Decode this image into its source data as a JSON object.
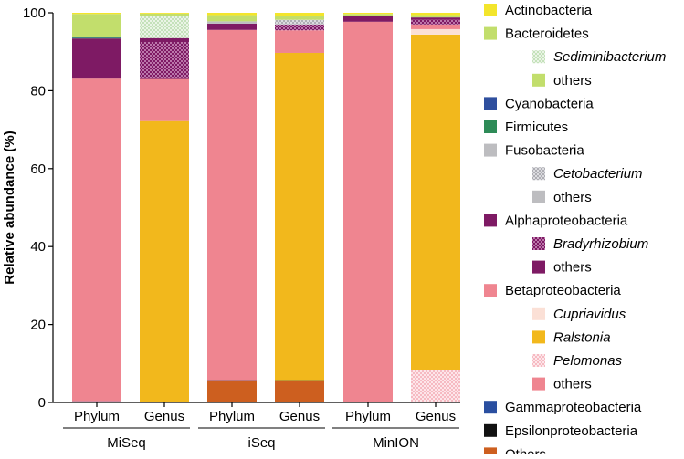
{
  "chart_data": {
    "type": "bar",
    "stacked": true,
    "ylabel": "Relative abundance (%)",
    "xlabel": "",
    "ylim": [
      0,
      100
    ],
    "yticks": [
      0,
      20,
      40,
      60,
      80,
      100
    ],
    "grid": false,
    "legend_position": "right",
    "categories": [
      "Phylum",
      "Genus",
      "Phylum",
      "Genus",
      "Phylum",
      "Genus"
    ],
    "groups": [
      {
        "label": "MiSeq",
        "categories": [
          0,
          1
        ]
      },
      {
        "label": "iSeq",
        "categories": [
          2,
          3
        ]
      },
      {
        "label": "MinION",
        "categories": [
          4,
          5
        ]
      }
    ],
    "legend": [
      {
        "id": "actino",
        "label": "Actinobacteria",
        "italic": false,
        "indent": false,
        "color": "#f3e52c",
        "pattern": "solid"
      },
      {
        "id": "bacteroidetes",
        "label": "Bacteroidetes",
        "italic": false,
        "indent": false,
        "color": "#c2de6c",
        "pattern": "solid"
      },
      {
        "id": "sediminibacterium",
        "label": "Sediminibacterium",
        "italic": true,
        "indent": true,
        "color": "#d8ecd4",
        "pattern": "dots"
      },
      {
        "id": "bact_others",
        "label": "others",
        "italic": false,
        "indent": true,
        "color": "#c2de6c",
        "pattern": "solid"
      },
      {
        "id": "cyano",
        "label": "Cyanobacteria",
        "italic": false,
        "indent": false,
        "color": "#2f4f9e",
        "pattern": "solid"
      },
      {
        "id": "firmicutes",
        "label": "Firmicutes",
        "italic": false,
        "indent": false,
        "color": "#2e8b57",
        "pattern": "solid"
      },
      {
        "id": "fuso",
        "label": "Fusobacteria",
        "italic": false,
        "indent": false,
        "color": "#bdbdc0",
        "pattern": "solid"
      },
      {
        "id": "cetobacterium",
        "label": "Cetobacterium",
        "italic": true,
        "indent": true,
        "color": "#bdbdc0",
        "pattern": "dots"
      },
      {
        "id": "fuso_others",
        "label": "others",
        "italic": false,
        "indent": true,
        "color": "#bdbdc0",
        "pattern": "solid"
      },
      {
        "id": "alpha",
        "label": "Alphaproteobacteria",
        "italic": false,
        "indent": false,
        "color": "#7e1a64",
        "pattern": "solid"
      },
      {
        "id": "bradyrhizobium",
        "label": "Bradyrhizobium",
        "italic": true,
        "indent": true,
        "color": "#7e1a64",
        "pattern": "dots"
      },
      {
        "id": "alpha_others",
        "label": "others",
        "italic": false,
        "indent": true,
        "color": "#7e1a64",
        "pattern": "solid"
      },
      {
        "id": "beta",
        "label": "Betaproteobacteria",
        "italic": false,
        "indent": false,
        "color": "#ef8590",
        "pattern": "solid"
      },
      {
        "id": "cupriavidus",
        "label": "Cupriavidus",
        "italic": true,
        "indent": true,
        "color": "#fbe0d6",
        "pattern": "solid"
      },
      {
        "id": "ralstonia",
        "label": "Ralstonia",
        "italic": true,
        "indent": true,
        "color": "#f2b81c",
        "pattern": "solid"
      },
      {
        "id": "pelomonas",
        "label": "Pelomonas",
        "italic": true,
        "indent": true,
        "color": "#f7b9c0",
        "pattern": "dots"
      },
      {
        "id": "beta_others",
        "label": "others",
        "italic": false,
        "indent": true,
        "color": "#ef8590",
        "pattern": "solid"
      },
      {
        "id": "gamma",
        "label": "Gammaproteobacteria",
        "italic": false,
        "indent": false,
        "color": "#2a4fa0",
        "pattern": "solid"
      },
      {
        "id": "epsilon",
        "label": "Epsilonproteobacteria",
        "italic": false,
        "indent": false,
        "color": "#111111",
        "pattern": "solid"
      },
      {
        "id": "others",
        "label": "Others",
        "italic": false,
        "indent": false,
        "color": "#cd5f1f",
        "pattern": "solid"
      }
    ],
    "bars": [
      {
        "category": "Phylum",
        "group": "MiSeq",
        "segments": [
          {
            "key": "others",
            "value": 0
          },
          {
            "key": "epsilon",
            "value": 0
          },
          {
            "key": "gamma",
            "value": 0.3
          },
          {
            "key": "beta",
            "value": 82.8
          },
          {
            "key": "alpha",
            "value": 10.3
          },
          {
            "key": "firmicutes",
            "value": 0.2
          },
          {
            "key": "cyano",
            "value": 0.1
          },
          {
            "key": "bacteroidetes",
            "value": 6.0
          },
          {
            "key": "actino",
            "value": 0.3
          }
        ]
      },
      {
        "category": "Genus",
        "group": "MiSeq",
        "segments": [
          {
            "key": "others",
            "value": 0
          },
          {
            "key": "ralstonia",
            "value": 72.2
          },
          {
            "key": "beta_others",
            "value": 10.8
          },
          {
            "key": "alpha_others",
            "value": 0.4
          },
          {
            "key": "bradyrhizobium",
            "value": 9.1
          },
          {
            "key": "alpha_others",
            "value": 1.0
          },
          {
            "key": "sediminibacterium",
            "value": 5.6
          },
          {
            "key": "bact_others",
            "value": 0.7
          },
          {
            "key": "actino",
            "value": 0.2
          }
        ]
      },
      {
        "category": "Phylum",
        "group": "iSeq",
        "segments": [
          {
            "key": "others",
            "value": 5.5
          },
          {
            "key": "epsilon",
            "value": 0.2
          },
          {
            "key": "beta",
            "value": 89.9
          },
          {
            "key": "alpha",
            "value": 1.6
          },
          {
            "key": "fuso",
            "value": 0.6
          },
          {
            "key": "bacteroidetes",
            "value": 1.6
          },
          {
            "key": "actino",
            "value": 0.6
          }
        ]
      },
      {
        "category": "Genus",
        "group": "iSeq",
        "segments": [
          {
            "key": "others",
            "value": 5.5
          },
          {
            "key": "epsilon",
            "value": 0.2
          },
          {
            "key": "ralstonia",
            "value": 84.0
          },
          {
            "key": "beta_others",
            "value": 5.8
          },
          {
            "key": "bradyrhizobium",
            "value": 1.5
          },
          {
            "key": "cetobacterium",
            "value": 1.2
          },
          {
            "key": "bact_others",
            "value": 0.9
          },
          {
            "key": "actino",
            "value": 0.9
          }
        ]
      },
      {
        "category": "Phylum",
        "group": "MinION",
        "segments": [
          {
            "key": "beta",
            "value": 97.7
          },
          {
            "key": "alpha",
            "value": 1.4
          },
          {
            "key": "bacteroidetes",
            "value": 0.6
          },
          {
            "key": "actino",
            "value": 0.3
          }
        ]
      },
      {
        "category": "Genus",
        "group": "MinION",
        "segments": [
          {
            "key": "pelomonas",
            "value": 8.4
          },
          {
            "key": "ralstonia",
            "value": 86.0
          },
          {
            "key": "cupriavidus",
            "value": 1.4
          },
          {
            "key": "beta_others",
            "value": 1.2
          },
          {
            "key": "bradyrhizobium",
            "value": 1.2
          },
          {
            "key": "alpha_others",
            "value": 0.6
          },
          {
            "key": "bact_others",
            "value": 0.6
          },
          {
            "key": "actino",
            "value": 0.6
          }
        ]
      }
    ]
  }
}
